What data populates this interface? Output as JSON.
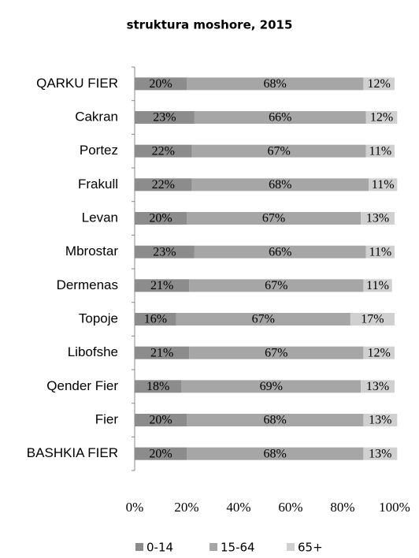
{
  "chart_data": {
    "type": "bar",
    "orientation": "horizontal",
    "stacked": true,
    "title": "struktura moshore, 2015",
    "categories": [
      "QARKU FIER",
      "Cakran",
      "Portez",
      "Frakull",
      "Levan",
      "Mbrostar",
      "Dermenas",
      "Topoje",
      "Libofshe",
      "Qender Fier",
      "Fier",
      "BASHKIA FIER"
    ],
    "series": [
      {
        "name": "0-14",
        "color": "#8c8c8c",
        "values": [
          20,
          23,
          22,
          22,
          20,
          23,
          21,
          16,
          21,
          18,
          20,
          20
        ],
        "value_labels": [
          "20%",
          "23%",
          "22%",
          "22%",
          "20%",
          "23%",
          "21%",
          "16%",
          "21%",
          "18%",
          "20%",
          "20%"
        ]
      },
      {
        "name": "15-64",
        "color": "#a6a6a6",
        "values": [
          68,
          66,
          67,
          68,
          67,
          66,
          67,
          67,
          67,
          69,
          68,
          68
        ],
        "value_labels": [
          "68%",
          "66%",
          "67%",
          "68%",
          "67%",
          "66%",
          "67%",
          "67%",
          "67%",
          "69%",
          "68%",
          "68%"
        ]
      },
      {
        "name": "65+",
        "color": "#d0d0d0",
        "values": [
          12,
          12,
          11,
          11,
          13,
          11,
          11,
          17,
          12,
          13,
          13,
          13
        ],
        "value_labels": [
          "12%",
          "12%",
          "11%",
          "11%",
          "13%",
          "11%",
          "11%",
          "17%",
          "12%",
          "13%",
          "13%",
          "13%"
        ]
      }
    ],
    "xlim": [
      0,
      100
    ],
    "xticks": [
      {
        "value": 0,
        "label": "0%"
      },
      {
        "value": 20,
        "label": "20%"
      },
      {
        "value": 40,
        "label": "40%"
      },
      {
        "value": 60,
        "label": "60%"
      },
      {
        "value": 80,
        "label": "80%"
      },
      {
        "value": 100,
        "label": "100%"
      }
    ],
    "legend": "bottom"
  }
}
